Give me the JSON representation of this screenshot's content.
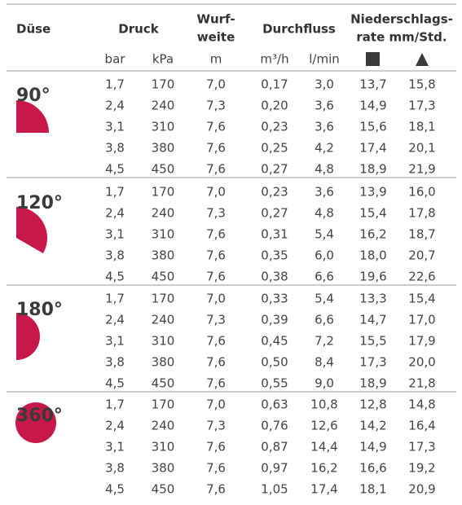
{
  "table": {
    "header": {
      "duese": "Düse",
      "druck": "Druck",
      "wurfweite": [
        "Wurf-",
        "weite"
      ],
      "durchfluss": "Durchfluss",
      "niederschlag": [
        "Niederschlags-",
        "rate mm/Std."
      ]
    },
    "units": [
      "bar",
      "kPa",
      "m",
      "m³/h",
      "l/min"
    ],
    "groups": [
      {
        "label": "90°",
        "rows": [
          [
            "1,7",
            "170",
            "7,0",
            "0,17",
            "3,0",
            "13,7",
            "15,8"
          ],
          [
            "2,4",
            "240",
            "7,3",
            "0,20",
            "3,6",
            "14,9",
            "17,3"
          ],
          [
            "3,1",
            "310",
            "7,6",
            "0,23",
            "3,6",
            "15,6",
            "18,1"
          ],
          [
            "3,8",
            "380",
            "7,6",
            "0,25",
            "4,2",
            "17,4",
            "20,1"
          ],
          [
            "4,5",
            "450",
            "7,6",
            "0,27",
            "4,8",
            "18,9",
            "21,9"
          ]
        ]
      },
      {
        "label": "120°",
        "rows": [
          [
            "1,7",
            "170",
            "7,0",
            "0,23",
            "3,6",
            "13,9",
            "16,0"
          ],
          [
            "2,4",
            "240",
            "7,3",
            "0,27",
            "4,8",
            "15,4",
            "17,8"
          ],
          [
            "3,1",
            "310",
            "7,6",
            "0,31",
            "5,4",
            "16,2",
            "18,7"
          ],
          [
            "3,8",
            "380",
            "7,6",
            "0,35",
            "6,0",
            "18,0",
            "20,7"
          ],
          [
            "4,5",
            "450",
            "7,6",
            "0,38",
            "6,6",
            "19,6",
            "22,6"
          ]
        ]
      },
      {
        "label": "180°",
        "rows": [
          [
            "1,7",
            "170",
            "7,0",
            "0,33",
            "5,4",
            "13,3",
            "15,4"
          ],
          [
            "2,4",
            "240",
            "7,3",
            "0,39",
            "6,6",
            "14,7",
            "17,0"
          ],
          [
            "3,1",
            "310",
            "7,6",
            "0,45",
            "7,2",
            "15,5",
            "17,9"
          ],
          [
            "3,8",
            "380",
            "7,6",
            "0,50",
            "8,4",
            "17,3",
            "20,0"
          ],
          [
            "4,5",
            "450",
            "7,6",
            "0,55",
            "9,0",
            "18,9",
            "21,8"
          ]
        ]
      },
      {
        "label": "360°",
        "rows": [
          [
            "1,7",
            "170",
            "7,0",
            "0,63",
            "10,8",
            "12,8",
            "14,8"
          ],
          [
            "2,4",
            "240",
            "7,3",
            "0,76",
            "12,6",
            "14,2",
            "16,4"
          ],
          [
            "3,1",
            "310",
            "7,6",
            "0,87",
            "14,4",
            "14,9",
            "17,3"
          ],
          [
            "3,8",
            "380",
            "7,6",
            "0,97",
            "16,2",
            "16,6",
            "19,2"
          ],
          [
            "4,5",
            "450",
            "7,6",
            "1,05",
            "17,4",
            "18,1",
            "20,9"
          ]
        ]
      }
    ]
  }
}
